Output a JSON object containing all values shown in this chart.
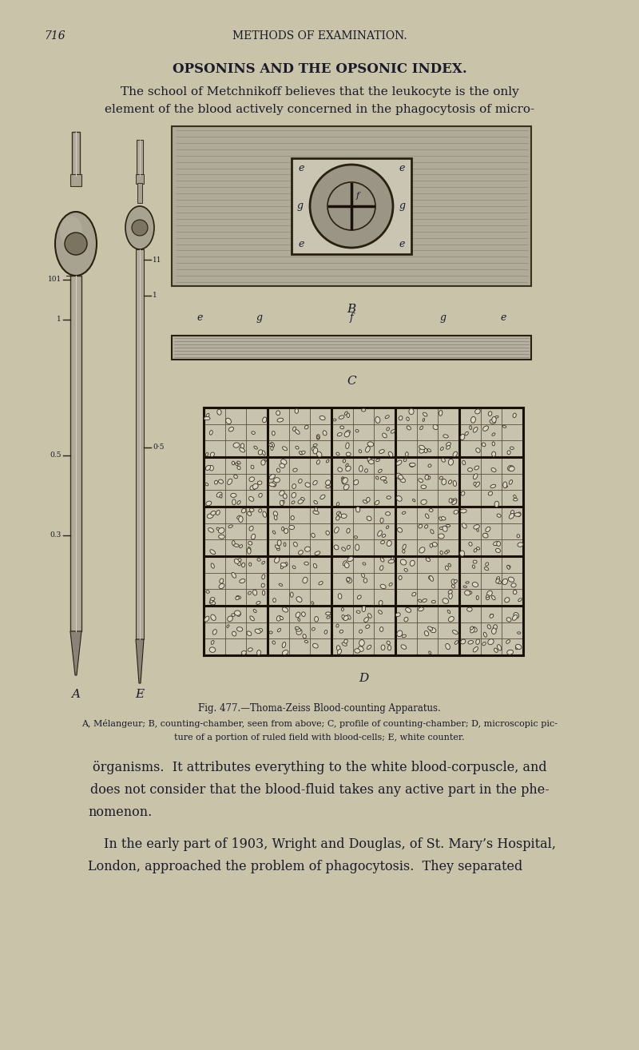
{
  "page_number": "716",
  "header_text": "METHODS OF EXAMINATION.",
  "title": "OPSONINS AND THE OPSONIC INDEX.",
  "paragraph1_line1": "The school of Metchnikoff believes that the leukocyte is the only",
  "paragraph1_line2": "element of the blood actively concerned in the phagocytosis of micro-",
  "fig_caption_main": "Fig. 477.—Thoma-Zeiss Blood-counting Apparatus.",
  "fig_caption_sub1": "A, Mélangeur; B, counting-chamber, seen from above; C, profile of counting-chamber; D, microscopic pic-",
  "fig_caption_sub2": "ture of a portion of ruled field with blood-cells; E, white counter.",
  "para2_line1": "örganisms.  It attributes everything to the white blood-corpuscle, and",
  "para2_line2": "does not consider that the blood-fluid takes any active part in the phe-",
  "para2_line3": "nomenon.",
  "para3_line1": "In the early part of 1903, Wright and Douglas, of St. Mary’s Hospital,",
  "para3_line2": "London, approached the problem of phagocytosis.  They separated",
  "bg_color": "#c9c4a9",
  "text_color": "#1a1a2a"
}
